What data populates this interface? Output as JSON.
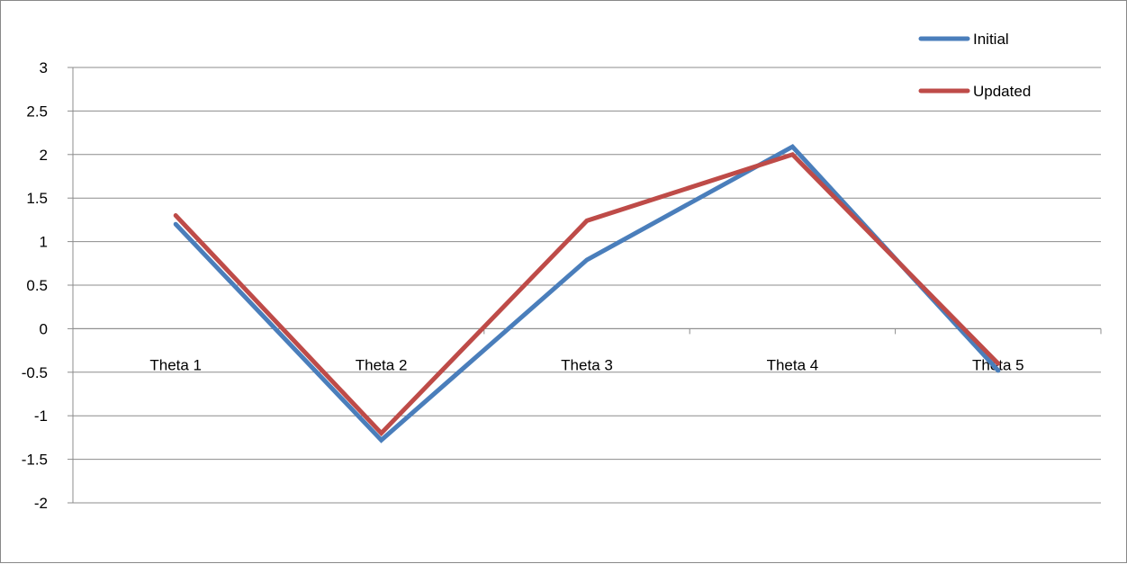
{
  "chart_data": {
    "type": "line",
    "title": "",
    "xlabel": "",
    "ylabel": "",
    "categories": [
      "Theta 1",
      "Theta 2",
      "Theta 3",
      "Theta 4",
      "Theta 5"
    ],
    "series": [
      {
        "name": "Initial",
        "color": "#4a7ebb",
        "values": [
          1.2,
          -1.28,
          0.79,
          2.09,
          -0.48
        ]
      },
      {
        "name": "Updated",
        "color": "#be4b48",
        "values": [
          1.3,
          -1.2,
          1.24,
          2.0,
          -0.4
        ]
      }
    ],
    "ylim": [
      -2,
      3
    ],
    "yticks": [
      "3",
      "2.5",
      "2",
      "1.5",
      "1",
      "0.5",
      "0",
      "-0.5",
      "-1",
      "-1.5",
      "-2"
    ],
    "grid": true,
    "legend_position": "top-right"
  }
}
